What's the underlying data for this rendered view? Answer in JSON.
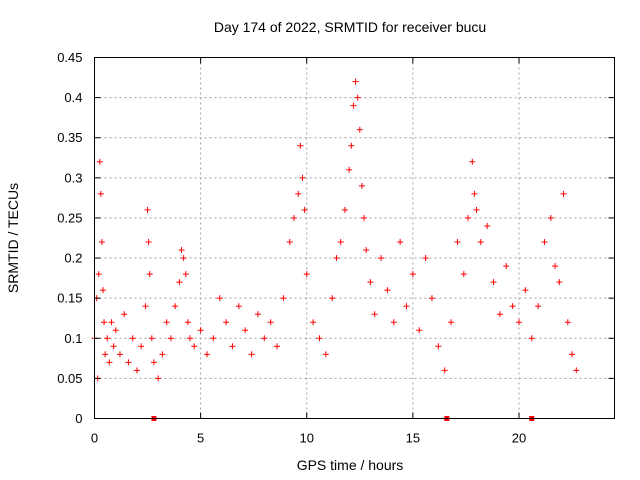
{
  "chart_data": {
    "type": "scatter",
    "title": "Day 174 of 2022, SRMTID for receiver bucu",
    "xlabel": "GPS time / hours",
    "ylabel": "SRMTID / TECUs",
    "xlim": [
      0,
      24.5
    ],
    "ylim": [
      0,
      0.45
    ],
    "x_ticks": [
      0,
      5,
      10,
      15,
      20
    ],
    "x_tick_labels": [
      "0",
      "5",
      "10",
      "15",
      "20"
    ],
    "y_ticks": [
      0,
      0.05,
      0.1,
      0.15,
      0.2,
      0.25,
      0.3,
      0.35,
      0.4,
      0.45
    ],
    "y_tick_labels": [
      "0",
      "0.05",
      "0.1",
      "0.15",
      "0.2",
      "0.25",
      "0.3",
      "0.35",
      "0.4",
      "0.45"
    ],
    "grid": true,
    "marker": "+",
    "color": "#ff0000",
    "series": [
      {
        "name": "SRMTID",
        "x": [
          0.0,
          0.1,
          0.15,
          0.2,
          0.25,
          0.3,
          0.35,
          0.4,
          0.45,
          0.5,
          0.6,
          0.7,
          0.8,
          0.9,
          1.0,
          1.2,
          1.4,
          1.6,
          1.8,
          2.0,
          2.2,
          2.4,
          2.5,
          2.55,
          2.6,
          2.7,
          2.8,
          3.0,
          3.2,
          3.4,
          3.6,
          3.8,
          4.0,
          4.1,
          4.2,
          4.3,
          4.4,
          4.5,
          4.7,
          5.0,
          5.3,
          5.6,
          5.9,
          6.2,
          6.5,
          6.8,
          7.1,
          7.4,
          7.7,
          8.0,
          8.3,
          8.6,
          8.9,
          9.2,
          9.4,
          9.6,
          9.7,
          9.8,
          9.9,
          10.0,
          10.3,
          10.6,
          10.9,
          11.2,
          11.4,
          11.6,
          11.8,
          12.0,
          12.1,
          12.2,
          12.3,
          12.4,
          12.5,
          12.6,
          12.7,
          12.8,
          13.0,
          13.2,
          13.5,
          13.8,
          14.1,
          14.4,
          14.7,
          15.0,
          15.3,
          15.6,
          15.9,
          16.2,
          16.5,
          16.8,
          17.1,
          17.4,
          17.6,
          17.8,
          17.9,
          18.0,
          18.2,
          18.5,
          18.8,
          19.1,
          19.4,
          19.7,
          20.0,
          20.3,
          20.6,
          20.9,
          21.2,
          21.5,
          21.7,
          21.9,
          22.1,
          22.3,
          22.5,
          22.7
        ],
        "y": [
          0.1,
          0.15,
          0.05,
          0.18,
          0.32,
          0.28,
          0.22,
          0.16,
          0.12,
          0.08,
          0.1,
          0.07,
          0.12,
          0.09,
          0.11,
          0.08,
          0.13,
          0.07,
          0.1,
          0.06,
          0.09,
          0.14,
          0.26,
          0.22,
          0.18,
          0.1,
          0.07,
          0.05,
          0.08,
          0.12,
          0.1,
          0.14,
          0.17,
          0.21,
          0.2,
          0.18,
          0.12,
          0.1,
          0.09,
          0.11,
          0.08,
          0.1,
          0.15,
          0.12,
          0.09,
          0.14,
          0.11,
          0.08,
          0.13,
          0.1,
          0.12,
          0.09,
          0.15,
          0.22,
          0.25,
          0.28,
          0.34,
          0.3,
          0.26,
          0.18,
          0.12,
          0.1,
          0.08,
          0.15,
          0.2,
          0.22,
          0.26,
          0.31,
          0.34,
          0.39,
          0.42,
          0.4,
          0.36,
          0.29,
          0.25,
          0.21,
          0.17,
          0.13,
          0.2,
          0.16,
          0.12,
          0.22,
          0.14,
          0.18,
          0.11,
          0.2,
          0.15,
          0.09,
          0.06,
          0.12,
          0.22,
          0.18,
          0.25,
          0.32,
          0.28,
          0.26,
          0.22,
          0.24,
          0.17,
          0.13,
          0.19,
          0.14,
          0.12,
          0.16,
          0.1,
          0.14,
          0.22,
          0.25,
          0.19,
          0.17,
          0.28,
          0.12,
          0.08,
          0.06
        ]
      }
    ],
    "axis_markers": [
      2.8,
      16.6,
      20.6
    ]
  }
}
